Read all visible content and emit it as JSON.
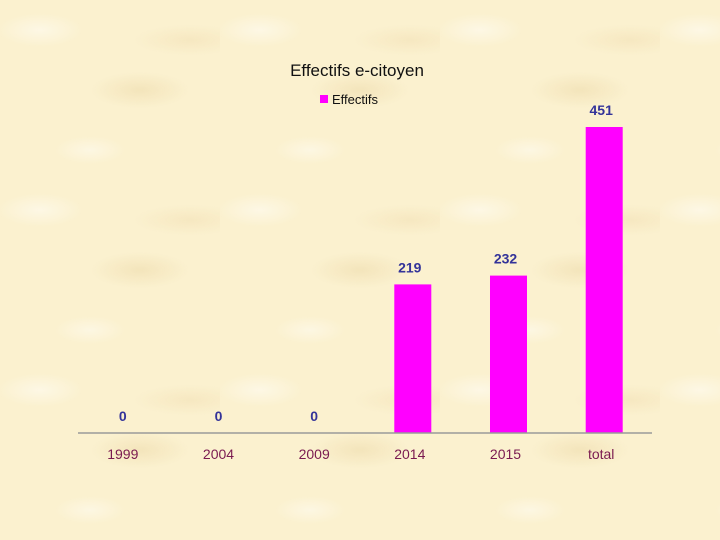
{
  "chart_data": {
    "type": "bar",
    "title": "Effectifs e-citoyen",
    "categories": [
      "1999",
      "2004",
      "2009",
      "2014",
      "2015",
      "total"
    ],
    "series": [
      {
        "name": "Effectifs",
        "values": [
          0,
          0,
          0,
          219,
          232,
          451
        ]
      }
    ],
    "data_labels": [
      "0",
      "0",
      "0",
      "219",
      "232",
      "451"
    ],
    "ylim": [
      0,
      451
    ],
    "legend": "top-center",
    "grid": false,
    "bar_color": "#ff00ff",
    "label_color": "#333399",
    "tick_color": "#7a1a50"
  }
}
